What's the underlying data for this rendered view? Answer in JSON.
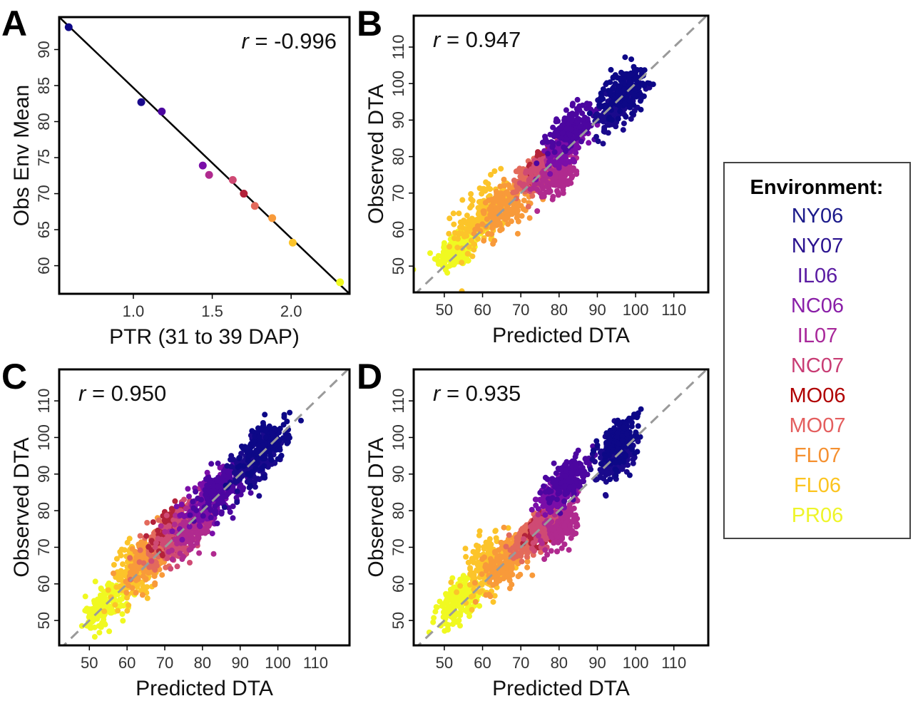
{
  "legend": {
    "title": "Environment:",
    "items": [
      {
        "label": "NY06",
        "text_color": "#1b1a8a",
        "point_color": "#0d0887"
      },
      {
        "label": "NY07",
        "text_color": "#2a128f",
        "point_color": "#1a0a8c"
      },
      {
        "label": "IL06",
        "text_color": "#5a1ba2",
        "point_color": "#4c06a0"
      },
      {
        "label": "NC06",
        "text_color": "#8a1fa8",
        "point_color": "#7a0ea8"
      },
      {
        "label": "IL07",
        "text_color": "#a8289a",
        "point_color": "#b02a8f"
      },
      {
        "label": "NC07",
        "text_color": "#c83c74",
        "point_color": "#cf4a74"
      },
      {
        "label": "MO06",
        "text_color": "#b00000",
        "point_color": "#b3223a"
      },
      {
        "label": "MO07",
        "text_color": "#e45e5e",
        "point_color": "#e36a5c"
      },
      {
        "label": "FL07",
        "text_color": "#f59030",
        "point_color": "#f89a3a"
      },
      {
        "label": "FL06",
        "text_color": "#fcc420",
        "point_color": "#fcc42a"
      },
      {
        "label": "PR06",
        "text_color": "#eef52a",
        "point_color": "#f0f921"
      }
    ]
  },
  "chart_data": [
    {
      "panel": "A",
      "type": "scatter",
      "annotation_r": "r",
      "annotation_value": " = -0.996",
      "xlabel": "PTR (31 to 39 DAP)",
      "ylabel": "Obs Env Mean",
      "xlim": [
        0.53,
        2.37
      ],
      "ylim": [
        56.1,
        94.5
      ],
      "xticks": [
        1.0,
        1.5,
        2.0
      ],
      "xtick_labels": [
        "1.0",
        "1.5",
        "2.0"
      ],
      "yticks": [
        60,
        65,
        70,
        75,
        80,
        85,
        90
      ],
      "ytick_labels": [
        "60",
        "65",
        "70",
        "75",
        "80",
        "85",
        "90"
      ],
      "grid": false,
      "points": [
        {
          "env": "NY06",
          "x": 0.59,
          "y": 93.1
        },
        {
          "env": "NY07",
          "x": 1.05,
          "y": 82.7
        },
        {
          "env": "IL06",
          "x": 1.18,
          "y": 81.4
        },
        {
          "env": "NC06",
          "x": 1.44,
          "y": 73.9
        },
        {
          "env": "IL07",
          "x": 1.48,
          "y": 72.6
        },
        {
          "env": "NC07",
          "x": 1.63,
          "y": 71.9
        },
        {
          "env": "MO06",
          "x": 1.7,
          "y": 70.0
        },
        {
          "env": "MO07",
          "x": 1.77,
          "y": 68.3
        },
        {
          "env": "FL07",
          "x": 1.88,
          "y": 66.6
        },
        {
          "env": "FL06",
          "x": 2.01,
          "y": 63.2
        },
        {
          "env": "PR06",
          "x": 2.31,
          "y": 57.7
        }
      ],
      "fit_line": {
        "x": [
          0.53,
          2.37
        ],
        "y": [
          94.5,
          56.1
        ],
        "color": "#000000"
      }
    },
    {
      "panel": "B",
      "type": "scatter",
      "annotation_r": "r",
      "annotation_value": " = 0.947",
      "xlabel": "Predicted DTA",
      "ylabel": "Observed DTA",
      "xlim": [
        42,
        119
      ],
      "ylim": [
        42.8,
        118.6
      ],
      "xticks": [
        50,
        60,
        70,
        80,
        90,
        100,
        110
      ],
      "xtick_labels": [
        "50",
        "60",
        "70",
        "80",
        "90",
        "100",
        "110"
      ],
      "yticks": [
        50,
        60,
        70,
        80,
        90,
        100,
        110
      ],
      "ytick_labels": [
        "50",
        "60",
        "70",
        "80",
        "90",
        "100",
        "110"
      ],
      "grid": false,
      "reference_line": "y = x (dashed grey)",
      "clusters": [
        {
          "env": "NY06",
          "pred": 97,
          "obs": 98,
          "sd_pred": 3,
          "sd_obs": 4.5
        },
        {
          "env": "NY07",
          "pred": 95,
          "obs": 94,
          "sd_pred": 3,
          "sd_obs": 4.5
        },
        {
          "env": "IL06",
          "pred": 83,
          "obs": 88,
          "sd_pred": 3,
          "sd_obs": 3.5
        },
        {
          "env": "NC06",
          "pred": 82,
          "obs": 83,
          "sd_pred": 2.5,
          "sd_obs": 3
        },
        {
          "env": "IL07",
          "pred": 80,
          "obs": 76,
          "sd_pred": 2.8,
          "sd_obs": 4.5
        },
        {
          "env": "NC07",
          "pred": 76,
          "obs": 76,
          "sd_pred": 2,
          "sd_obs": 3
        },
        {
          "env": "MO06",
          "pred": 76,
          "obs": 78,
          "sd_pred": 1.5,
          "sd_obs": 2.5
        },
        {
          "env": "MO07",
          "pred": 73,
          "obs": 75,
          "sd_pred": 2,
          "sd_obs": 3
        },
        {
          "env": "FL07",
          "pred": 66,
          "obs": 66,
          "sd_pred": 3.5,
          "sd_obs": 4.5
        },
        {
          "env": "FL06",
          "pred": 60,
          "obs": 64,
          "sd_pred": 3.5,
          "sd_obs": 6
        },
        {
          "env": "PR06",
          "pred": 54,
          "obs": 55,
          "sd_pred": 3,
          "sd_obs": 4
        }
      ]
    },
    {
      "panel": "C",
      "type": "scatter",
      "annotation_r": "r",
      "annotation_value": " = 0.950",
      "xlabel": "Predicted DTA",
      "ylabel": "Observed DTA",
      "xlim": [
        42,
        119
      ],
      "ylim": [
        43.2,
        118.6
      ],
      "xticks": [
        50,
        60,
        70,
        80,
        90,
        100,
        110
      ],
      "xtick_labels": [
        "50",
        "60",
        "70",
        "80",
        "90",
        "100",
        "110"
      ],
      "yticks": [
        50,
        60,
        70,
        80,
        90,
        100,
        110
      ],
      "ytick_labels": [
        "50",
        "60",
        "70",
        "80",
        "90",
        "100",
        "110"
      ],
      "grid": false,
      "reference_line": "y = x (dashed grey)",
      "clusters": [
        {
          "env": "NY06",
          "pred": 97,
          "obs": 98,
          "sd_pred": 3,
          "sd_obs": 4.5
        },
        {
          "env": "NY07",
          "pred": 93,
          "obs": 93,
          "sd_pred": 3,
          "sd_obs": 4.5
        },
        {
          "env": "IL06",
          "pred": 85,
          "obs": 86,
          "sd_pred": 3,
          "sd_obs": 4
        },
        {
          "env": "NC06",
          "pred": 82,
          "obs": 83,
          "sd_pred": 3,
          "sd_obs": 4
        },
        {
          "env": "IL07",
          "pred": 78,
          "obs": 76,
          "sd_pred": 3,
          "sd_obs": 4.5
        },
        {
          "env": "NC07",
          "pred": 74,
          "obs": 74,
          "sd_pred": 3,
          "sd_obs": 4.5
        },
        {
          "env": "MO06",
          "pred": 72,
          "obs": 75,
          "sd_pred": 2.5,
          "sd_obs": 4
        },
        {
          "env": "MO07",
          "pred": 70,
          "obs": 72,
          "sd_pred": 3,
          "sd_obs": 4.5
        },
        {
          "env": "FL07",
          "pred": 66,
          "obs": 67,
          "sd_pred": 3,
          "sd_obs": 5
        },
        {
          "env": "FL06",
          "pred": 62,
          "obs": 64,
          "sd_pred": 3,
          "sd_obs": 5.5
        },
        {
          "env": "PR06",
          "pred": 55,
          "obs": 55,
          "sd_pred": 3,
          "sd_obs": 4
        }
      ]
    },
    {
      "panel": "D",
      "type": "scatter",
      "annotation_r": "r",
      "annotation_value": " = 0.935",
      "xlabel": "Predicted DTA",
      "ylabel": "Observed DTA",
      "xlim": [
        42,
        119
      ],
      "ylim": [
        43.2,
        118.6
      ],
      "xticks": [
        50,
        60,
        70,
        80,
        90,
        100,
        110
      ],
      "xtick_labels": [
        "50",
        "60",
        "70",
        "80",
        "90",
        "100",
        "110"
      ],
      "yticks": [
        50,
        60,
        70,
        80,
        90,
        100,
        110
      ],
      "ytick_labels": [
        "50",
        "60",
        "70",
        "80",
        "90",
        "100",
        "110"
      ],
      "grid": false,
      "reference_line": "y = x (dashed grey)",
      "clusters": [
        {
          "env": "NY06",
          "pred": 96,
          "obs": 99,
          "sd_pred": 2.5,
          "sd_obs": 4.5
        },
        {
          "env": "NY07",
          "pred": 94,
          "obs": 95,
          "sd_pred": 2.5,
          "sd_obs": 4.5
        },
        {
          "env": "IL06",
          "pred": 82,
          "obs": 89,
          "sd_pred": 2.5,
          "sd_obs": 3.5
        },
        {
          "env": "NC06",
          "pred": 80,
          "obs": 85,
          "sd_pred": 2.5,
          "sd_obs": 3
        },
        {
          "env": "IL07",
          "pred": 81,
          "obs": 76,
          "sd_pred": 2,
          "sd_obs": 4.5
        },
        {
          "env": "NC07",
          "pred": 77,
          "obs": 76,
          "sd_pred": 2,
          "sd_obs": 3
        },
        {
          "env": "MO06",
          "pred": 75,
          "obs": 75,
          "sd_pred": 1.5,
          "sd_obs": 2.5
        },
        {
          "env": "MO07",
          "pred": 72,
          "obs": 73,
          "sd_pred": 2,
          "sd_obs": 3
        },
        {
          "env": "FL07",
          "pred": 66,
          "obs": 66,
          "sd_pred": 3,
          "sd_obs": 4.5
        },
        {
          "env": "FL06",
          "pred": 61,
          "obs": 65,
          "sd_pred": 3,
          "sd_obs": 5.5
        },
        {
          "env": "PR06",
          "pred": 54,
          "obs": 55,
          "sd_pred": 3,
          "sd_obs": 4
        }
      ]
    }
  ]
}
